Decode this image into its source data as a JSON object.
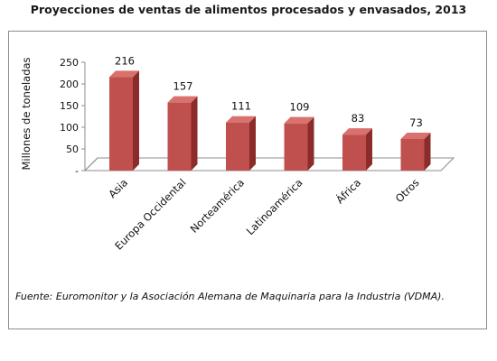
{
  "chart_data": {
    "type": "bar",
    "title": "Proyecciones de ventas de alimentos procesados y envasados, 2013",
    "ylabel": "Millones de toneladas",
    "xlabel": "",
    "categories": [
      "Asia",
      "Europa Occidental",
      "Norteamérica",
      "Latinoamérica",
      "África",
      "Otros"
    ],
    "values": [
      216,
      157,
      111,
      109,
      83,
      73
    ],
    "data_labels": [
      "216",
      "157",
      "111",
      "109",
      "83",
      "73"
    ],
    "ylim": [
      0,
      250
    ],
    "yticks": [
      {
        "value": 0,
        "label": "-"
      },
      {
        "value": 50,
        "label": "50"
      },
      {
        "value": 100,
        "label": "100"
      },
      {
        "value": 150,
        "label": "150"
      },
      {
        "value": 200,
        "label": "200"
      },
      {
        "value": 250,
        "label": "250"
      }
    ],
    "grid": false,
    "legend": "none",
    "style": "3d-column",
    "colors": {
      "bar_front": "#c0504d",
      "bar_side": "#8b2c2a",
      "bar_top": "#d9716e"
    }
  },
  "source_note": "Fuente:  Euromonitor y la Asociación Alemana de Maquinaria para la Industria (VDMA)."
}
